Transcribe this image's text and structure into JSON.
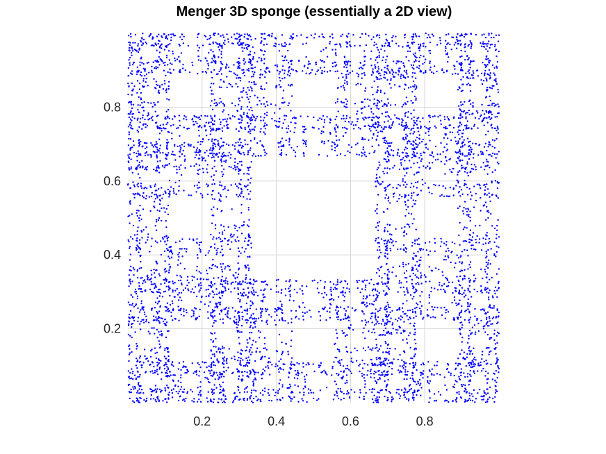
{
  "chart_data": {
    "type": "scatter",
    "title": "Menger 3D sponge (essentially a 2D view)",
    "xlabel": "",
    "ylabel": "",
    "xlim": [
      0,
      1
    ],
    "ylim": [
      0,
      1
    ],
    "xticks": [
      0.2,
      0.4,
      0.6,
      0.8
    ],
    "yticks": [
      0.2,
      0.4,
      0.6,
      0.8
    ],
    "xtick_labels": [
      "0.2",
      "0.4",
      "0.6",
      "0.8"
    ],
    "ytick_labels": [
      "0.2",
      "0.4",
      "0.6",
      "0.8"
    ],
    "grid": true,
    "axis_aspect": "equal",
    "series": [
      {
        "marker": "dot",
        "color": "#0000ff",
        "generator": "menger-sponge-3d-projected-xy",
        "recursion_depth": 4,
        "num_points": 26000
      }
    ]
  }
}
